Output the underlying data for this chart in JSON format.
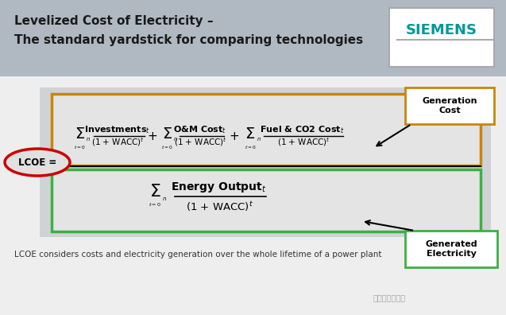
{
  "title_line1": "Levelized Cost of Electricity –",
  "title_line2": "The standard yardstick for comparing technologies",
  "siemens_text": "SIEMENS",
  "header_bg": "#b0b8c1",
  "header_text_color": "#1a1a1a",
  "siemens_color": "#009999",
  "siemens_box_bg": "#ffffff",
  "body_bg": "#e8e8e8",
  "orange_box_color": "#c8860a",
  "green_box_color": "#3cb043",
  "lcoe_color": "#cc0000",
  "generation_cost_label": "Generation\nCost",
  "generated_elec_label": "Generated\nElectricity",
  "footer_text": "LCOE considers costs and electricity generation over the whole lifetime of a power plant",
  "footer_color": "#333333",
  "background_color": "#ffffff"
}
